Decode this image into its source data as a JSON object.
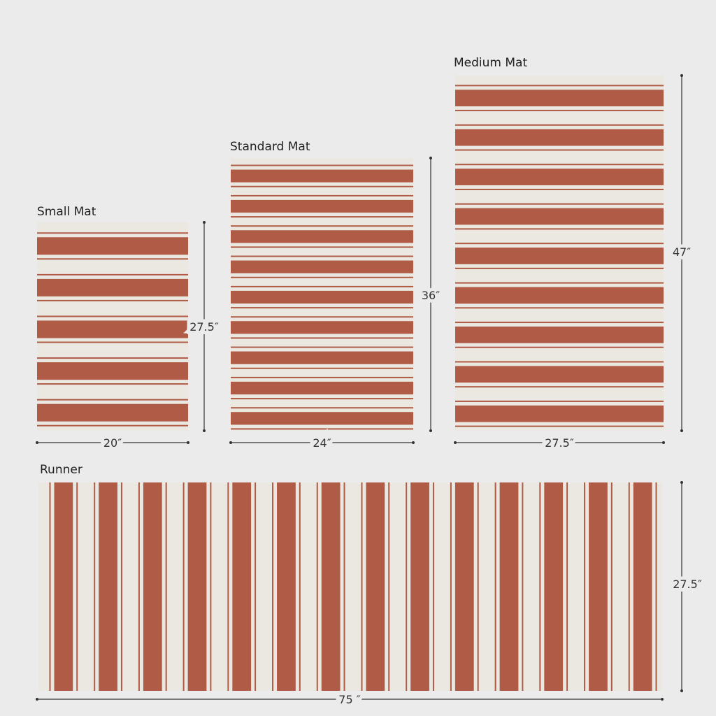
{
  "mats": [
    {
      "label": "Small Mat",
      "height": "27.5″",
      "width": "20″"
    },
    {
      "label": "Standard Mat",
      "height": "36″",
      "width": "24″"
    },
    {
      "label": "Medium Mat",
      "height": "47″",
      "width": "27.5″"
    },
    {
      "label": "Runner",
      "height": "27.5″",
      "width": "75 ″"
    }
  ]
}
